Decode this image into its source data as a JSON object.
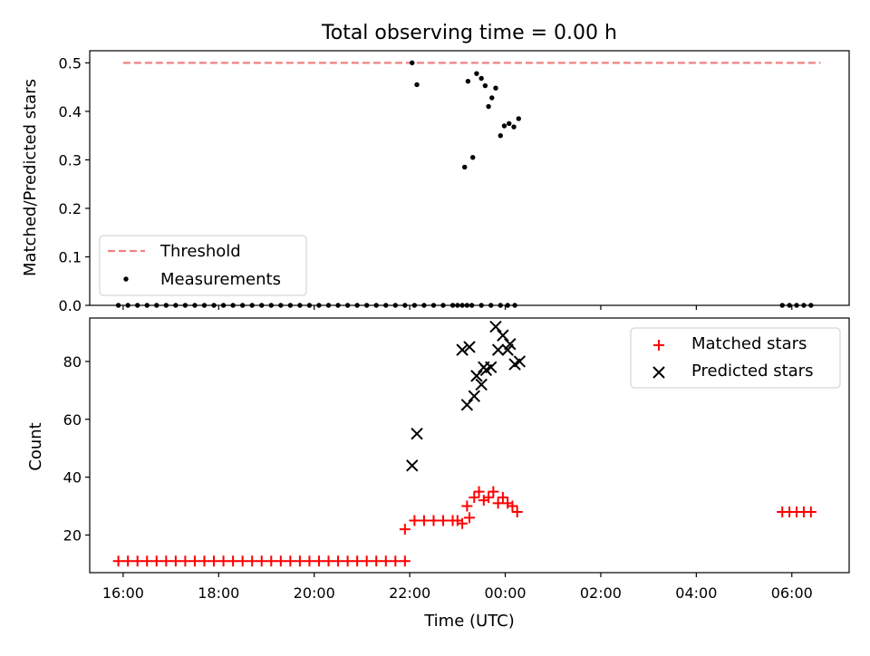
{
  "figure": {
    "title": "Total observing time = 0.00 h",
    "xlabel": "Time (UTC)"
  },
  "chart_data": [
    {
      "type": "scatter",
      "ylabel": "Matched/Predicted stars",
      "x_unit": "hours since 00:00 UTC on the observing night",
      "xlim": [
        -8.7,
        7.2
      ],
      "ylim": [
        0,
        0.525
      ],
      "yticks": [
        0.0,
        0.1,
        0.2,
        0.3,
        0.4,
        0.5
      ],
      "ytick_labels": [
        "0.0",
        "0.1",
        "0.2",
        "0.3",
        "0.4",
        "0.5"
      ],
      "grid": false,
      "legend": "lower-left",
      "series": [
        {
          "name": "Threshold",
          "kind": "dashed-line",
          "color": "#f08080",
          "x": [
            -8.0,
            6.6
          ],
          "y": [
            0.5,
            0.5
          ]
        },
        {
          "name": "Measurements",
          "kind": "dot",
          "color": "#000000",
          "x": [
            -8.1,
            -7.9,
            -7.7,
            -7.5,
            -7.3,
            -7.1,
            -6.9,
            -6.7,
            -6.5,
            -6.3,
            -6.1,
            -5.9,
            -5.7,
            -5.5,
            -5.3,
            -5.1,
            -4.9,
            -4.7,
            -4.5,
            -4.3,
            -4.1,
            -3.9,
            -3.7,
            -3.5,
            -3.3,
            -3.1,
            -2.9,
            -2.7,
            -2.5,
            -2.3,
            -2.1,
            -1.9,
            -1.7,
            -1.5,
            -1.3,
            -1.1,
            -1.0,
            -0.9,
            -0.8,
            -0.7,
            -0.5,
            -0.3,
            -0.1,
            0.05,
            0.2,
            5.8,
            5.95,
            6.1,
            6.25,
            6.4
          ],
          "y": [
            0,
            0,
            0,
            0,
            0,
            0,
            0,
            0,
            0,
            0,
            0,
            0,
            0,
            0,
            0,
            0,
            0,
            0,
            0,
            0,
            0,
            0,
            0,
            0,
            0,
            0,
            0,
            0,
            0,
            0,
            0,
            0,
            0,
            0,
            0,
            0,
            0,
            0,
            0,
            0,
            0,
            0,
            0,
            0,
            0,
            0,
            0,
            0,
            0,
            0
          ]
        },
        {
          "name": "Measurements",
          "kind": "dot",
          "color": "#000000",
          "legend": false,
          "x": [
            -1.95,
            -1.85,
            -0.85,
            -0.78,
            -0.68,
            -0.6,
            -0.5,
            -0.42,
            -0.35,
            -0.28,
            -0.2,
            -0.1,
            -0.02,
            0.08,
            0.18,
            0.28
          ],
          "y": [
            0.5,
            0.455,
            0.285,
            0.462,
            0.305,
            0.478,
            0.468,
            0.453,
            0.41,
            0.428,
            0.448,
            0.35,
            0.37,
            0.375,
            0.368,
            0.385
          ]
        }
      ]
    },
    {
      "type": "scatter",
      "ylabel": "Count",
      "xlim": [
        -8.7,
        7.2
      ],
      "ylim": [
        7,
        95
      ],
      "yticks": [
        20,
        40,
        60,
        80
      ],
      "ytick_labels": [
        "20",
        "40",
        "60",
        "80"
      ],
      "xticks": [
        -8,
        -6,
        -4,
        -2,
        0,
        2,
        4,
        6
      ],
      "xtick_labels": [
        "16:00",
        "18:00",
        "20:00",
        "22:00",
        "00:00",
        "02:00",
        "04:00",
        "06:00"
      ],
      "grid": false,
      "legend": "top-right",
      "series": [
        {
          "name": "Matched stars",
          "marker": "plus",
          "color": "#ff0000",
          "x": [
            -8.1,
            -7.9,
            -7.7,
            -7.5,
            -7.3,
            -7.1,
            -6.9,
            -6.7,
            -6.5,
            -6.3,
            -6.1,
            -5.9,
            -5.7,
            -5.5,
            -5.3,
            -5.1,
            -4.9,
            -4.7,
            -4.5,
            -4.3,
            -4.1,
            -3.9,
            -3.7,
            -3.5,
            -3.3,
            -3.1,
            -2.9,
            -2.7,
            -2.5,
            -2.3,
            -2.1,
            -2.1,
            -1.9,
            -1.7,
            -1.5,
            -1.3,
            -1.1,
            -1.0,
            -0.9,
            -0.8,
            -0.75,
            -0.65,
            -0.55,
            -0.45,
            -0.35,
            -0.25,
            -0.15,
            -0.05,
            0.05,
            0.15,
            0.25,
            5.8,
            5.95,
            6.1,
            6.25,
            6.4
          ],
          "y": [
            11,
            11,
            11,
            11,
            11,
            11,
            11,
            11,
            11,
            11,
            11,
            11,
            11,
            11,
            11,
            11,
            11,
            11,
            11,
            11,
            11,
            11,
            11,
            11,
            11,
            11,
            11,
            11,
            11,
            11,
            11,
            22,
            25,
            25,
            25,
            25,
            25,
            25,
            24,
            30,
            26,
            33,
            35,
            32,
            33,
            35,
            31,
            33,
            31,
            30,
            28,
            28,
            28,
            28,
            28,
            28
          ]
        },
        {
          "name": "Predicted stars",
          "marker": "x",
          "color": "#000000",
          "x": [
            -1.95,
            -1.85,
            -0.9,
            -0.8,
            -0.75,
            -0.65,
            -0.6,
            -0.5,
            -0.45,
            -0.4,
            -0.3,
            -0.2,
            -0.15,
            -0.05,
            0.05,
            0.1,
            0.2,
            0.3
          ],
          "y": [
            44,
            55,
            84,
            65,
            85,
            68,
            75,
            72,
            78,
            77,
            78,
            92,
            84,
            89,
            84,
            86,
            79,
            80
          ]
        }
      ]
    }
  ]
}
